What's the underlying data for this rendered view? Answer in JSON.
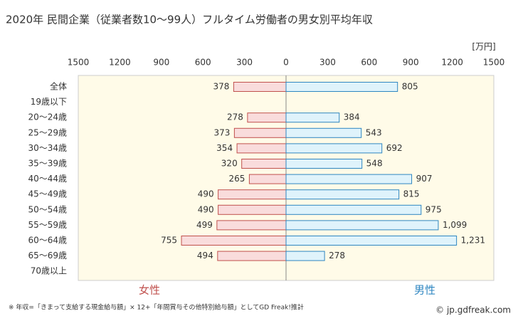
{
  "chart_data": {
    "type": "butterfly",
    "title": "2020年 民間企業（従業者数10〜99人）フルタイム労働者の男女別平均年収",
    "unit": "[万円]",
    "categories": [
      "全体",
      "19歳以下",
      "20〜24歳",
      "25〜29歳",
      "30〜34歳",
      "35〜39歳",
      "40〜44歳",
      "45〜49歳",
      "50〜54歳",
      "55〜59歳",
      "60〜64歳",
      "65〜69歳",
      "70歳以上"
    ],
    "series": [
      {
        "name": "女性",
        "side": "left",
        "color": "#c0504d",
        "fill": "#f9dcdc",
        "values": [
          378,
          null,
          278,
          373,
          354,
          320,
          265,
          490,
          490,
          499,
          755,
          494,
          null
        ]
      },
      {
        "name": "男性",
        "side": "right",
        "color": "#2e86c1",
        "fill": "#dff3fb",
        "values": [
          805,
          null,
          384,
          543,
          692,
          548,
          907,
          815,
          975,
          1099,
          1231,
          278,
          null
        ],
        "value_labels": [
          "805",
          null,
          "384",
          "543",
          "692",
          "548",
          "907",
          "815",
          "975",
          "1,099",
          "1,231",
          "278",
          null
        ]
      }
    ],
    "xlim": [
      0,
      1500
    ],
    "xticks": [
      0,
      300,
      600,
      900,
      1200,
      1500
    ],
    "note": "※ 年収=「きまって支給する現金給与額」× 12+「年間賞与その他特別給与額」としてGD Freak!推計",
    "credit": "© jp.gdfreak.com"
  }
}
